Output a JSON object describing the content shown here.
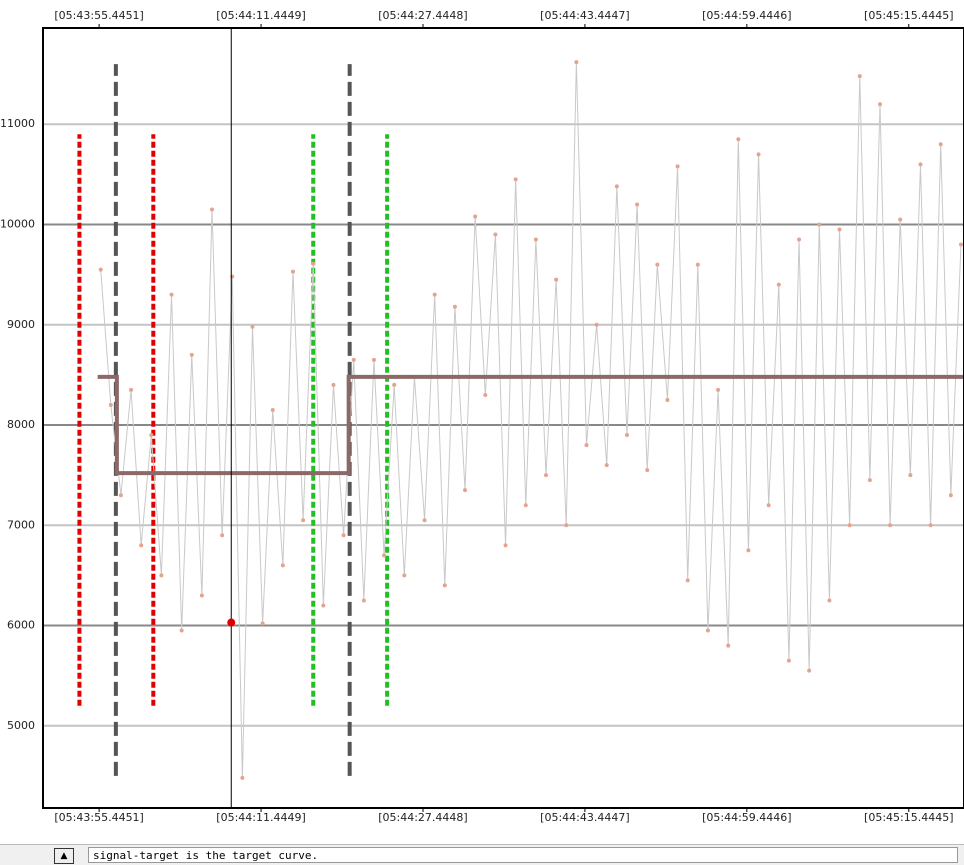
{
  "chart_data": {
    "type": "line",
    "xlim": [
      49.9,
      140.9
    ],
    "ylim": [
      4180,
      11960
    ],
    "xticks": [
      {
        "value": 55.4451,
        "label": "[05:43:55.4451]"
      },
      {
        "value": 71.4449,
        "label": "[05:44:11.4449]"
      },
      {
        "value": 87.4448,
        "label": "[05:44:27.4448]"
      },
      {
        "value": 103.4447,
        "label": "[05:44:43.4447]"
      },
      {
        "value": 119.4446,
        "label": "[05:44:59.4446]"
      },
      {
        "value": 135.4445,
        "label": "[05:45:15.4445]"
      }
    ],
    "yticks": [
      5000,
      6000,
      7000,
      8000,
      9000,
      10000,
      11000
    ],
    "grid": true,
    "series": [
      {
        "color": "#c9c9c9",
        "marker_color": "#e2a48e",
        "x": [
          55.6,
          56.6,
          57.6,
          58.6,
          59.6,
          60.6,
          61.6,
          62.6,
          63.6,
          64.6,
          65.6,
          66.6,
          67.6,
          68.6,
          69.6,
          70.6,
          71.6,
          72.6,
          73.6,
          74.6,
          75.6,
          76.6,
          77.6,
          78.6,
          79.6,
          80.6,
          81.6,
          82.6,
          83.6,
          84.6,
          85.6,
          86.6,
          87.6,
          88.6,
          89.6,
          90.6,
          91.6,
          92.6,
          93.6,
          94.6,
          95.6,
          96.6,
          97.6,
          98.6,
          99.6,
          100.6,
          101.6,
          102.6,
          103.6,
          104.6,
          105.6,
          106.6,
          107.6,
          108.6,
          109.6,
          110.6,
          111.6,
          112.6,
          113.6,
          114.6,
          115.6,
          116.6,
          117.6,
          118.6,
          119.6,
          120.6,
          121.6,
          122.6,
          123.6,
          124.6,
          125.6,
          126.6,
          127.6,
          128.6,
          129.6,
          130.6,
          131.6,
          132.6,
          133.6,
          134.6,
          135.6,
          136.6,
          137.6,
          138.6,
          139.6,
          140.6
        ],
        "values": [
          9550,
          8200,
          7300,
          8350,
          6800,
          7900,
          6500,
          9300,
          5950,
          8700,
          6300,
          10150,
          6900,
          9480,
          4480,
          8980,
          6020,
          8150,
          6600,
          9530,
          7050,
          9610,
          6200,
          8400,
          6900,
          8650,
          6250,
          8650,
          6700,
          8400,
          6500,
          8480,
          7050,
          9300,
          6400,
          9180,
          7350,
          10080,
          8300,
          9900,
          6800,
          10450,
          7200,
          9850,
          7500,
          9450,
          7000,
          11620,
          7800,
          9000,
          7600,
          10380,
          7900,
          10200,
          7550,
          9600,
          8250,
          10580,
          6450,
          9600,
          5950,
          8350,
          5800,
          10850,
          6750,
          10700,
          7200,
          9400,
          5650,
          9850,
          5550,
          10000,
          6250,
          9950,
          7000,
          11480,
          7450,
          11200,
          7000,
          10050,
          7500,
          10600,
          7000,
          10800,
          7300,
          9800
        ]
      },
      {
        "color": "#8c6868",
        "x": [
          55.3,
          57.2,
          57.2,
          80.1,
          80.1,
          140.9
        ],
        "values": [
          8480,
          8480,
          7520,
          7520,
          8480,
          8480
        ]
      }
    ],
    "vlines": [
      {
        "x": 53.5,
        "color": "#e00000",
        "range": [
          5200,
          10900
        ]
      },
      {
        "x": 57.1,
        "color": "#555555",
        "range": [
          4500,
          11600
        ]
      },
      {
        "x": 60.8,
        "color": "#e00000",
        "range": [
          5200,
          10900
        ]
      },
      {
        "x": 76.6,
        "color": "#22c022",
        "range": [
          5200,
          10900
        ]
      },
      {
        "x": 80.2,
        "color": "#555555",
        "range": [
          4500,
          11600
        ]
      },
      {
        "x": 83.9,
        "color": "#22c022",
        "range": [
          5200,
          10900
        ]
      }
    ],
    "cursor_x": 68.5,
    "cursor_point": {
      "x": 68.5,
      "y": 6030
    }
  },
  "status": {
    "text": "signal-target is the target curve."
  }
}
